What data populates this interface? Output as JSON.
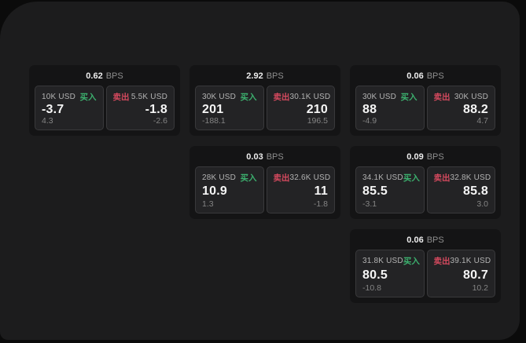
{
  "labels": {
    "bps_unit": "BPS",
    "buy": "买入",
    "sell": "卖出"
  },
  "colors": {
    "backdrop": "#0b0b0b",
    "panel_bg": "#1c1c1d",
    "card_bg": "#141415",
    "tile_bg": "#232325",
    "tile_border": "#39393b",
    "buy_green": "#3cb06e",
    "sell_red": "#d4495e",
    "value_text": "#f5f5f5",
    "muted_text": "#848484"
  },
  "cards": [
    {
      "bps": "0.62",
      "buy": {
        "amount": "10K USD",
        "price": "-3.7",
        "change": "4.3"
      },
      "sell": {
        "amount": "5.5K USD",
        "price": "-1.8",
        "change": "-2.6"
      }
    },
    {
      "bps": "2.92",
      "buy": {
        "amount": "30K USD",
        "price": "201",
        "change": "-188.1"
      },
      "sell": {
        "amount": "30.1K USD",
        "price": "210",
        "change": "196.5"
      }
    },
    {
      "bps": "0.06",
      "buy": {
        "amount": "30K USD",
        "price": "88",
        "change": "-4.9"
      },
      "sell": {
        "amount": "30K USD",
        "price": "88.2",
        "change": "4.7"
      }
    },
    {
      "bps": "0.03",
      "buy": {
        "amount": "28K USD",
        "price": "10.9",
        "change": "1.3"
      },
      "sell": {
        "amount": "32.6K USD",
        "price": "11",
        "change": "-1.8"
      }
    },
    {
      "bps": "0.09",
      "buy": {
        "amount": "34.1K USD",
        "price": "85.5",
        "change": "-3.1"
      },
      "sell": {
        "amount": "32.8K USD",
        "price": "85.8",
        "change": "3.0"
      }
    },
    {
      "bps": "0.06",
      "buy": {
        "amount": "31.8K USD",
        "price": "80.5",
        "change": "-10.8"
      },
      "sell": {
        "amount": "39.1K USD",
        "price": "80.7",
        "change": "10.2"
      }
    }
  ]
}
